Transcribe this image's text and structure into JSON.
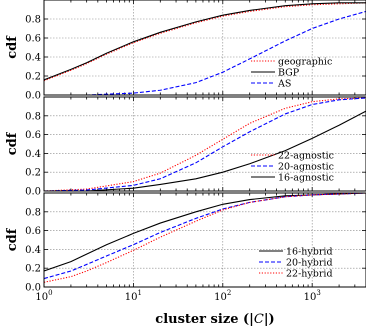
{
  "chart_data": [
    {
      "type": "line",
      "xscale": "log",
      "xlim": [
        1,
        4000
      ],
      "ylim": [
        0,
        1.0
      ],
      "ylabel": "cdf",
      "yticks": [
        "0.0",
        "0.2",
        "0.4",
        "0.6",
        "0.8"
      ],
      "grid": true,
      "legend_position": "lower-right",
      "series": [
        {
          "name": "geographic",
          "style": "dotted",
          "color": "#ff0000",
          "x": [
            1,
            2,
            3,
            5,
            10,
            20,
            50,
            100,
            200,
            500,
            1000,
            2000,
            4000
          ],
          "y": [
            0.15,
            0.26,
            0.33,
            0.43,
            0.55,
            0.65,
            0.76,
            0.83,
            0.88,
            0.93,
            0.95,
            0.96,
            0.97
          ]
        },
        {
          "name": "BGP",
          "style": "solid",
          "color": "#000000",
          "x": [
            1,
            2,
            3,
            5,
            10,
            20,
            50,
            100,
            200,
            500,
            1000,
            2000,
            4000
          ],
          "y": [
            0.16,
            0.27,
            0.34,
            0.44,
            0.56,
            0.66,
            0.77,
            0.84,
            0.89,
            0.94,
            0.96,
            0.97,
            0.97
          ]
        },
        {
          "name": "AS",
          "style": "dashed",
          "color": "#0000ff",
          "x": [
            1,
            3,
            10,
            20,
            50,
            100,
            200,
            500,
            1000,
            2000,
            4000
          ],
          "y": [
            0.0,
            0.0,
            0.02,
            0.05,
            0.13,
            0.24,
            0.38,
            0.57,
            0.7,
            0.8,
            0.88
          ]
        }
      ]
    },
    {
      "type": "line",
      "xscale": "log",
      "xlim": [
        1,
        4000
      ],
      "ylim": [
        0,
        1.0
      ],
      "ylabel": "cdf",
      "yticks": [
        "0.0",
        "0.2",
        "0.4",
        "0.6",
        "0.8"
      ],
      "grid": true,
      "legend_position": "lower-right",
      "series": [
        {
          "name": "22-agnostic",
          "style": "dotted",
          "color": "#ff0000",
          "x": [
            1,
            3,
            10,
            20,
            50,
            100,
            200,
            500,
            1000,
            2000,
            4000
          ],
          "y": [
            0.0,
            0.02,
            0.1,
            0.19,
            0.38,
            0.55,
            0.72,
            0.88,
            0.95,
            0.98,
            0.99
          ]
        },
        {
          "name": "20-agnostic",
          "style": "dashed",
          "color": "#0000ff",
          "x": [
            1,
            3,
            10,
            20,
            50,
            100,
            200,
            500,
            1000,
            2000,
            4000
          ],
          "y": [
            0.0,
            0.01,
            0.06,
            0.13,
            0.3,
            0.47,
            0.63,
            0.82,
            0.92,
            0.97,
            0.99
          ]
        },
        {
          "name": "16-agnostic",
          "style": "solid",
          "color": "#000000",
          "x": [
            1,
            3,
            10,
            20,
            50,
            100,
            200,
            500,
            1000,
            2000,
            4000
          ],
          "y": [
            0.0,
            0.0,
            0.03,
            0.07,
            0.13,
            0.2,
            0.29,
            0.43,
            0.56,
            0.7,
            0.85
          ]
        }
      ]
    },
    {
      "type": "line",
      "xscale": "log",
      "xlim": [
        1,
        4000
      ],
      "ylim": [
        0,
        1.0
      ],
      "ylabel": "cdf",
      "xlabel_prefix": "cluster size (|",
      "xlabel_symbol": "C",
      "xlabel_suffix": "|)",
      "yticks": [
        "0.0",
        "0.2",
        "0.4",
        "0.6",
        "0.8"
      ],
      "xticks": [
        {
          "value": 1,
          "base": "10",
          "exp": "0"
        },
        {
          "value": 10,
          "base": "10",
          "exp": "1"
        },
        {
          "value": 100,
          "base": "10",
          "exp": "2"
        },
        {
          "value": 1000,
          "base": "10",
          "exp": "3"
        }
      ],
      "grid": true,
      "legend_position": "lower-right",
      "series": [
        {
          "name": "16-hybrid",
          "style": "solid",
          "color": "#000000",
          "x": [
            1,
            2,
            3,
            5,
            10,
            20,
            50,
            100,
            200,
            500,
            1000,
            2000,
            4000
          ],
          "y": [
            0.17,
            0.27,
            0.35,
            0.45,
            0.57,
            0.68,
            0.8,
            0.88,
            0.93,
            0.97,
            0.98,
            0.99,
            1.0
          ]
        },
        {
          "name": "20-hybrid",
          "style": "dashed",
          "color": "#0000ff",
          "x": [
            1,
            2,
            3,
            5,
            10,
            20,
            50,
            100,
            200,
            500,
            1000,
            2000,
            4000
          ],
          "y": [
            0.09,
            0.17,
            0.24,
            0.33,
            0.45,
            0.58,
            0.73,
            0.83,
            0.9,
            0.96,
            0.98,
            0.99,
            1.0
          ]
        },
        {
          "name": "22-hybrid",
          "style": "dotted",
          "color": "#ff0000",
          "x": [
            1,
            2,
            3,
            5,
            10,
            20,
            50,
            100,
            200,
            500,
            1000,
            2000,
            4000
          ],
          "y": [
            0.05,
            0.11,
            0.17,
            0.26,
            0.39,
            0.53,
            0.7,
            0.82,
            0.9,
            0.96,
            0.98,
            0.99,
            1.0
          ]
        }
      ]
    }
  ]
}
